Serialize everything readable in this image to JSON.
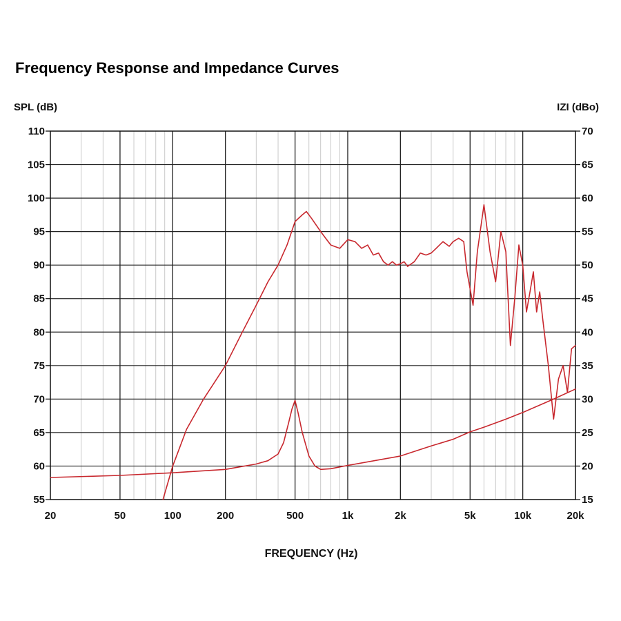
{
  "chart_data": {
    "type": "line",
    "title": "Frequency Response and Impedance Curves",
    "xlabel": "FREQUENCY (Hz)",
    "ylabel_left": "SPL (dB)",
    "ylabel_right": "IZI (dBo)",
    "x_scale": "log",
    "xlim": [
      20,
      20000
    ],
    "ylim_left": [
      55,
      110
    ],
    "ylim_right": [
      15,
      70
    ],
    "grid": true,
    "x_ticks": [
      {
        "value": 20,
        "label": "20"
      },
      {
        "value": 50,
        "label": "50"
      },
      {
        "value": 100,
        "label": "100"
      },
      {
        "value": 200,
        "label": "200"
      },
      {
        "value": 500,
        "label": "500"
      },
      {
        "value": 1000,
        "label": "1k"
      },
      {
        "value": 2000,
        "label": "2k"
      },
      {
        "value": 5000,
        "label": "5k"
      },
      {
        "value": 10000,
        "label": "10k"
      },
      {
        "value": 20000,
        "label": "20k"
      }
    ],
    "y_ticks_left": [
      "55",
      "60",
      "65",
      "70",
      "75",
      "80",
      "85",
      "90",
      "95",
      "100",
      "105",
      "110"
    ],
    "y_ticks_right": [
      "15",
      "20",
      "25",
      "30",
      "35",
      "40",
      "45",
      "50",
      "55",
      "60",
      "65",
      "70"
    ],
    "line_color": "#c8282e",
    "series": [
      {
        "axis": "left",
        "x": [
          88,
          100,
          120,
          150,
          200,
          250,
          300,
          350,
          400,
          450,
          500,
          550,
          580,
          620,
          700,
          800,
          900,
          1000,
          1100,
          1200,
          1300,
          1400,
          1500,
          1600,
          1700,
          1800,
          1900,
          2000,
          2100,
          2200,
          2400,
          2600,
          2800,
          3000,
          3200,
          3500,
          3800,
          4000,
          4300,
          4600,
          4800,
          5200,
          5500,
          6000,
          6500,
          7000,
          7500,
          8000,
          8500,
          9000,
          9500,
          10000,
          10500,
          11000,
          11500,
          12000,
          12500,
          13000,
          14000,
          15000,
          16000,
          17000,
          18000,
          19000,
          20000
        ],
        "y": [
          55,
          60,
          65.5,
          70,
          75,
          80,
          84,
          87.5,
          90,
          93,
          96.5,
          97.5,
          98,
          97,
          95,
          93,
          92.5,
          93.8,
          93.5,
          92.5,
          93,
          91.5,
          91.8,
          90.5,
          90,
          90.5,
          90,
          90.2,
          90.5,
          89.8,
          90.5,
          91.8,
          91.5,
          91.8,
          92.5,
          93.5,
          92.8,
          93.5,
          94,
          93.5,
          89,
          84,
          92,
          99,
          92,
          87.5,
          95,
          92,
          78,
          85,
          93,
          90,
          83,
          86,
          89,
          83,
          86,
          82,
          75,
          67,
          73,
          75,
          71,
          77.5,
          78
        ]
      },
      {
        "axis": "right",
        "x": [
          20,
          50,
          100,
          200,
          300,
          350,
          400,
          430,
          460,
          480,
          500,
          520,
          550,
          600,
          650,
          700,
          800,
          1000,
          2000,
          3000,
          4000,
          5000,
          6000,
          8000,
          10000,
          15000,
          20000
        ],
        "y": [
          18.3,
          18.6,
          19,
          19.5,
          20.3,
          20.8,
          21.8,
          23.5,
          26.5,
          28.5,
          29.8,
          28,
          25,
          21.5,
          20,
          19.5,
          19.6,
          20.1,
          21.5,
          23,
          24,
          25.1,
          25.8,
          27,
          28,
          30,
          31.5
        ]
      }
    ]
  }
}
